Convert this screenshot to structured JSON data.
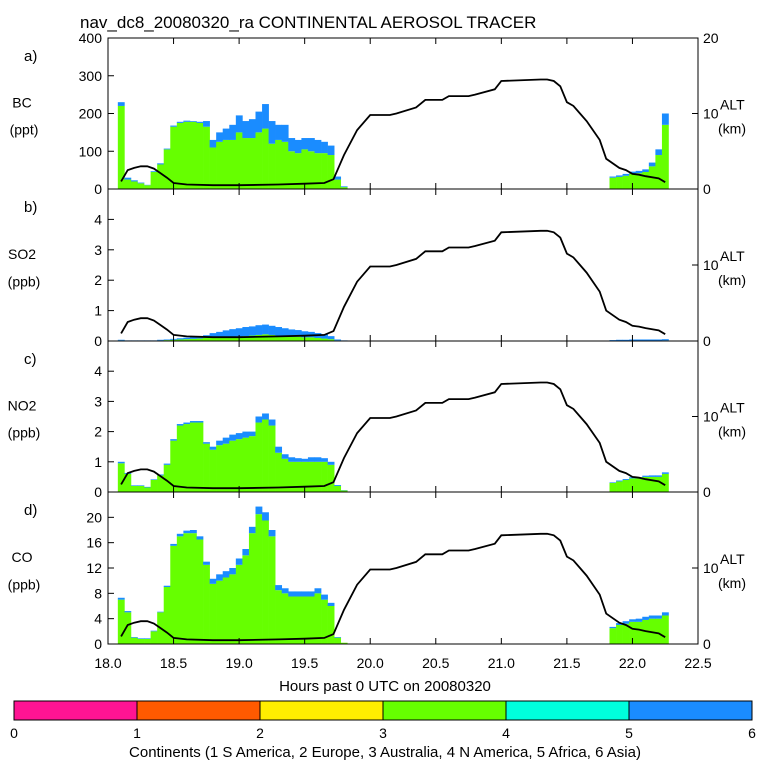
{
  "chart_data": {
    "type": "stacked-bar-with-line",
    "title": "nav_dc8_20080320_ra CONTINENTAL AEROSOL TRACER",
    "x_label": "Hours past 0 UTC on 20080320",
    "x_range": [
      18.0,
      22.5
    ],
    "x_ticks": [
      18.0,
      18.5,
      19.0,
      19.5,
      20.0,
      20.5,
      21.0,
      21.5,
      22.0,
      22.5
    ],
    "x_tick_labels": [
      "18.0",
      "18.5",
      "19.0",
      "19.5",
      "20.0",
      "20.5",
      "21.0",
      "21.5",
      "22.0",
      "22.5"
    ],
    "right_axis": {
      "label": "ALT",
      "units": "(km)",
      "range": [
        0,
        20
      ],
      "ticks": [
        0,
        10,
        20
      ],
      "tick_labels": [
        "0",
        "10",
        "20"
      ]
    },
    "colors": {
      "s_america": "#ff1493",
      "europe": "#ff5a00",
      "australia": "#ffee00",
      "n_america": "#66ff00",
      "africa": "#00ffdd",
      "asia": "#1a8cff",
      "altitude_line": "#000000"
    },
    "altitude": {
      "name": "ALT (km)",
      "x": [
        18.1,
        18.15,
        18.2,
        18.25,
        18.3,
        18.35,
        18.4,
        18.45,
        18.5,
        18.6,
        18.8,
        19.0,
        19.3,
        19.5,
        19.65,
        19.72,
        19.8,
        19.9,
        20.0,
        20.15,
        20.2,
        20.35,
        20.42,
        20.55,
        20.6,
        20.75,
        20.8,
        20.95,
        21.0,
        21.3,
        21.35,
        21.4,
        21.45,
        21.5,
        21.55,
        21.6,
        21.65,
        21.75,
        21.8,
        21.9,
        21.95,
        22.0,
        22.05,
        22.1,
        22.2,
        22.25
      ],
      "y": [
        1.0,
        2.5,
        2.8,
        3.0,
        3.0,
        2.7,
        2.1,
        1.5,
        0.8,
        0.6,
        0.5,
        0.5,
        0.6,
        0.7,
        0.8,
        1.3,
        4.5,
        7.8,
        9.8,
        9.8,
        10.0,
        10.8,
        11.8,
        11.8,
        12.3,
        12.3,
        12.5,
        13.2,
        14.3,
        14.5,
        14.5,
        14.3,
        13.6,
        11.5,
        11.0,
        10.0,
        9.0,
        6.5,
        4.0,
        2.8,
        2.5,
        2.0,
        1.9,
        1.7,
        1.4,
        0.9
      ]
    },
    "panels": [
      {
        "letter": "a)",
        "var_label": "BC",
        "units": "(ppt)",
        "ylim": [
          0,
          400
        ],
        "y_ticks": [
          0,
          100,
          200,
          300,
          400
        ],
        "y_tick_labels": [
          "0",
          "100",
          "200",
          "300",
          "400"
        ],
        "x": [
          18.1,
          18.15,
          18.2,
          18.25,
          18.3,
          18.35,
          18.4,
          18.45,
          18.5,
          18.55,
          18.6,
          18.65,
          18.7,
          18.75,
          18.8,
          18.85,
          18.9,
          18.95,
          19.0,
          19.05,
          19.1,
          19.15,
          19.2,
          19.25,
          19.3,
          19.35,
          19.4,
          19.45,
          19.5,
          19.55,
          19.6,
          19.65,
          19.7,
          19.75,
          19.8,
          21.85,
          21.9,
          21.95,
          22.0,
          22.05,
          22.1,
          22.15,
          22.2,
          22.25
        ],
        "series": [
          {
            "name": "N America",
            "color_key": "n_america",
            "values": [
              220,
              25,
              20,
              15,
              10,
              45,
              65,
              105,
              165,
              175,
              178,
              178,
              175,
              165,
              110,
              125,
              130,
              130,
              150,
              135,
              135,
              150,
              160,
              120,
              130,
              125,
              100,
              95,
              105,
              100,
              95,
              95,
              90,
              25,
              5,
              30,
              32,
              35,
              40,
              42,
              45,
              60,
              90,
              170
            ]
          },
          {
            "name": "Asia",
            "color_key": "asia",
            "values": [
              10,
              5,
              3,
              2,
              1,
              2,
              3,
              2,
              3,
              3,
              3,
              2,
              3,
              15,
              20,
              25,
              30,
              40,
              45,
              45,
              50,
              55,
              65,
              60,
              40,
              45,
              35,
              35,
              30,
              35,
              35,
              30,
              25,
              8,
              2,
              3,
              4,
              5,
              6,
              6,
              7,
              10,
              15,
              30
            ]
          }
        ]
      },
      {
        "letter": "b)",
        "var_label": "SO2",
        "units": "(ppb)",
        "ylim": [
          0,
          5
        ],
        "y_ticks": [
          0,
          1,
          2,
          3,
          4
        ],
        "y_tick_labels": [
          "0",
          "1",
          "2",
          "3",
          "4"
        ],
        "x": [
          18.1,
          18.15,
          18.2,
          18.25,
          18.3,
          18.35,
          18.4,
          18.45,
          18.5,
          18.55,
          18.6,
          18.65,
          18.7,
          18.75,
          18.8,
          18.85,
          18.9,
          18.95,
          19.0,
          19.05,
          19.1,
          19.15,
          19.2,
          19.25,
          19.3,
          19.35,
          19.4,
          19.45,
          19.5,
          19.55,
          19.6,
          19.65,
          19.7,
          19.75,
          19.8,
          21.85,
          21.9,
          21.95,
          22.0,
          22.05,
          22.1,
          22.15,
          22.2,
          22.25
        ],
        "series": [
          {
            "name": "N America",
            "color_key": "n_america",
            "values": [
              0.02,
              0.01,
              0.01,
              0.01,
              0.01,
              0.01,
              0.02,
              0.03,
              0.04,
              0.05,
              0.06,
              0.07,
              0.08,
              0.1,
              0.12,
              0.12,
              0.13,
              0.14,
              0.15,
              0.16,
              0.18,
              0.2,
              0.22,
              0.2,
              0.18,
              0.16,
              0.14,
              0.14,
              0.12,
              0.12,
              0.1,
              0.08,
              0.06,
              0.02,
              0.01,
              0.01,
              0.01,
              0.01,
              0.01,
              0.01,
              0.01,
              0.01,
              0.01,
              0.02
            ]
          },
          {
            "name": "Asia",
            "color_key": "asia",
            "values": [
              0.02,
              0.01,
              0.01,
              0.01,
              0.01,
              0.01,
              0.02,
              0.02,
              0.03,
              0.04,
              0.05,
              0.06,
              0.07,
              0.09,
              0.14,
              0.18,
              0.22,
              0.25,
              0.27,
              0.3,
              0.3,
              0.32,
              0.32,
              0.3,
              0.28,
              0.26,
              0.24,
              0.22,
              0.2,
              0.18,
              0.16,
              0.14,
              0.1,
              0.03,
              0.01,
              0.02,
              0.03,
              0.03,
              0.04,
              0.04,
              0.04,
              0.04,
              0.04,
              0.04
            ]
          }
        ]
      },
      {
        "letter": "c)",
        "var_label": "NO2",
        "units": "(ppb)",
        "ylim": [
          0,
          5
        ],
        "y_ticks": [
          0,
          1,
          2,
          3,
          4
        ],
        "y_tick_labels": [
          "0",
          "1",
          "2",
          "3",
          "4"
        ],
        "x": [
          18.1,
          18.15,
          18.2,
          18.25,
          18.3,
          18.35,
          18.4,
          18.45,
          18.5,
          18.55,
          18.6,
          18.65,
          18.7,
          18.75,
          18.8,
          18.85,
          18.9,
          18.95,
          19.0,
          19.05,
          19.1,
          19.15,
          19.2,
          19.25,
          19.3,
          19.35,
          19.4,
          19.45,
          19.5,
          19.55,
          19.6,
          19.65,
          19.7,
          19.75,
          19.8,
          21.85,
          21.9,
          21.95,
          22.0,
          22.05,
          22.1,
          22.15,
          22.2,
          22.25
        ],
        "series": [
          {
            "name": "N America",
            "color_key": "n_america",
            "values": [
              0.95,
              0.6,
              0.2,
              0.2,
              0.15,
              0.4,
              0.55,
              0.9,
              1.7,
              2.2,
              2.25,
              2.3,
              2.3,
              1.6,
              1.4,
              1.55,
              1.6,
              1.7,
              1.75,
              1.8,
              1.85,
              2.3,
              2.4,
              2.2,
              1.3,
              1.1,
              1.0,
              1.0,
              1.0,
              1.0,
              1.0,
              1.0,
              0.9,
              0.2,
              0.05,
              0.3,
              0.35,
              0.4,
              0.45,
              0.45,
              0.5,
              0.5,
              0.5,
              0.6
            ]
          },
          {
            "name": "Asia",
            "color_key": "asia",
            "values": [
              0.05,
              0.03,
              0.02,
              0.02,
              0.02,
              0.02,
              0.03,
              0.04,
              0.05,
              0.05,
              0.05,
              0.05,
              0.05,
              0.05,
              0.1,
              0.15,
              0.2,
              0.2,
              0.2,
              0.2,
              0.15,
              0.2,
              0.2,
              0.2,
              0.2,
              0.15,
              0.15,
              0.12,
              0.1,
              0.15,
              0.15,
              0.12,
              0.1,
              0.03,
              0.01,
              0.02,
              0.03,
              0.03,
              0.04,
              0.04,
              0.04,
              0.05,
              0.05,
              0.05
            ]
          }
        ]
      },
      {
        "letter": "d)",
        "var_label": "CO",
        "units": "(ppb)",
        "ylim": [
          0,
          24
        ],
        "y_ticks": [
          0,
          4,
          8,
          12,
          16,
          20
        ],
        "y_tick_labels": [
          "0",
          "4",
          "8",
          "12",
          "16",
          "20"
        ],
        "x": [
          18.1,
          18.15,
          18.2,
          18.25,
          18.3,
          18.35,
          18.4,
          18.45,
          18.5,
          18.55,
          18.6,
          18.65,
          18.7,
          18.75,
          18.8,
          18.85,
          18.9,
          18.95,
          19.0,
          19.05,
          19.1,
          19.15,
          19.2,
          19.25,
          19.3,
          19.35,
          19.4,
          19.45,
          19.5,
          19.55,
          19.6,
          19.65,
          19.7,
          19.75,
          19.8,
          21.85,
          21.9,
          21.95,
          22.0,
          22.05,
          22.1,
          22.15,
          22.2,
          22.25
        ],
        "series": [
          {
            "name": "N America",
            "color_key": "n_america",
            "values": [
              7.0,
              5.0,
              1.0,
              0.8,
              0.8,
              2.0,
              5.0,
              9.0,
              15.5,
              17.0,
              17.5,
              17.5,
              16.5,
              12.5,
              9.5,
              10.0,
              10.5,
              11.0,
              12.5,
              14.0,
              17.5,
              20.5,
              19.5,
              17.0,
              8.5,
              8.0,
              7.5,
              7.5,
              7.5,
              7.5,
              8.0,
              7.0,
              6.0,
              1.0,
              0.2,
              2.5,
              3.0,
              3.2,
              3.5,
              3.5,
              3.8,
              4.0,
              4.0,
              4.5
            ]
          },
          {
            "name": "Asia",
            "color_key": "asia",
            "values": [
              0.3,
              0.2,
              0.1,
              0.1,
              0.1,
              0.1,
              0.1,
              0.2,
              0.3,
              0.4,
              0.4,
              0.5,
              0.5,
              0.5,
              0.8,
              1.0,
              1.0,
              1.0,
              1.0,
              1.0,
              1.0,
              1.2,
              1.3,
              1.0,
              0.8,
              0.8,
              0.8,
              0.8,
              0.8,
              0.8,
              0.8,
              0.8,
              0.5,
              0.1,
              0.0,
              0.2,
              0.3,
              0.4,
              0.4,
              0.5,
              0.5,
              0.5,
              0.5,
              0.5
            ]
          }
        ]
      }
    ],
    "legend": {
      "title": "Continents (1 S America, 2 Europe, 3 Australia, 4 N America, 5 Africa, 6 Asia)",
      "tick_labels": [
        "0",
        "1",
        "2",
        "3",
        "4",
        "5",
        "6"
      ],
      "segments": [
        {
          "name": "S America",
          "color_key": "s_america"
        },
        {
          "name": "Europe",
          "color_key": "europe"
        },
        {
          "name": "Australia",
          "color_key": "australia"
        },
        {
          "name": "N America",
          "color_key": "n_america"
        },
        {
          "name": "Africa",
          "color_key": "africa"
        },
        {
          "name": "Asia",
          "color_key": "asia"
        }
      ]
    }
  }
}
